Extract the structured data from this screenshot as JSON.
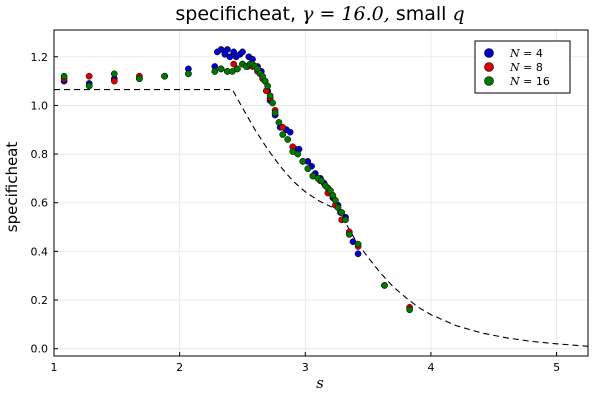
{
  "chart_data": {
    "type": "scatter",
    "title": {
      "prefix": "specificheat, ",
      "gamma_symbol": "γ",
      "gamma_value": " = 16.0,  ",
      "suffix": "small ",
      "q": "q"
    },
    "xlabel": "s",
    "ylabel": "specificheat",
    "xlim": [
      1.0,
      5.25
    ],
    "ylim": [
      -0.03,
      1.31
    ],
    "xticks": [
      1,
      2,
      3,
      4,
      5
    ],
    "yticks": [
      0.0,
      0.2,
      0.4,
      0.6,
      0.8,
      1.0,
      1.2
    ],
    "grid": true,
    "legend": {
      "position": "top-right"
    },
    "series": [
      {
        "name_prefix": "N",
        "name": " = 4",
        "color": "#0000cc",
        "marker": "circle",
        "points": [
          [
            1.08,
            1.1
          ],
          [
            1.28,
            1.09
          ],
          [
            1.48,
            1.11
          ],
          [
            1.68,
            1.11
          ],
          [
            1.88,
            1.12
          ],
          [
            2.07,
            1.15
          ],
          [
            2.28,
            1.16
          ],
          [
            2.3,
            1.22
          ],
          [
            2.33,
            1.23
          ],
          [
            2.36,
            1.21
          ],
          [
            2.38,
            1.23
          ],
          [
            2.4,
            1.2
          ],
          [
            2.43,
            1.22
          ],
          [
            2.45,
            1.2
          ],
          [
            2.48,
            1.21
          ],
          [
            2.5,
            1.22
          ],
          [
            2.55,
            1.2
          ],
          [
            2.58,
            1.19
          ],
          [
            2.62,
            1.16
          ],
          [
            2.65,
            1.14
          ],
          [
            2.68,
            1.1
          ],
          [
            2.7,
            1.06
          ],
          [
            2.72,
            1.02
          ],
          [
            2.76,
            0.96
          ],
          [
            2.8,
            0.91
          ],
          [
            2.85,
            0.9
          ],
          [
            2.88,
            0.89
          ],
          [
            2.92,
            0.82
          ],
          [
            2.95,
            0.82
          ],
          [
            3.02,
            0.77
          ],
          [
            3.05,
            0.75
          ],
          [
            3.08,
            0.72
          ],
          [
            3.12,
            0.7
          ],
          [
            3.15,
            0.68
          ],
          [
            3.18,
            0.66
          ],
          [
            3.2,
            0.64
          ],
          [
            3.22,
            0.62
          ],
          [
            3.26,
            0.59
          ],
          [
            3.28,
            0.56
          ],
          [
            3.32,
            0.54
          ],
          [
            3.38,
            0.44
          ],
          [
            3.42,
            0.39
          ]
        ]
      },
      {
        "name_prefix": "N",
        "name": " = 8",
        "color": "#dd0000",
        "marker": "circle",
        "points": [
          [
            1.08,
            1.11
          ],
          [
            1.28,
            1.12
          ],
          [
            1.48,
            1.1
          ],
          [
            1.68,
            1.12
          ],
          [
            1.88,
            1.12
          ],
          [
            2.07,
            1.13
          ],
          [
            2.28,
            1.14
          ],
          [
            2.33,
            1.15
          ],
          [
            2.38,
            1.14
          ],
          [
            2.43,
            1.17
          ],
          [
            2.46,
            1.15
          ],
          [
            2.5,
            1.17
          ],
          [
            2.54,
            1.16
          ],
          [
            2.58,
            1.16
          ],
          [
            2.62,
            1.14
          ],
          [
            2.66,
            1.11
          ],
          [
            2.69,
            1.06
          ],
          [
            2.72,
            1.03
          ],
          [
            2.76,
            0.98
          ],
          [
            2.82,
            0.91
          ],
          [
            2.9,
            0.83
          ],
          [
            2.98,
            0.77
          ],
          [
            3.06,
            0.71
          ],
          [
            3.12,
            0.69
          ],
          [
            3.18,
            0.64
          ],
          [
            3.24,
            0.59
          ],
          [
            3.29,
            0.53
          ],
          [
            3.35,
            0.48
          ],
          [
            3.42,
            0.42
          ],
          [
            3.63,
            0.26
          ],
          [
            3.83,
            0.17
          ]
        ]
      },
      {
        "name_prefix": "N",
        "name": " = 16",
        "color": "#007700",
        "marker": "circle",
        "points": [
          [
            1.08,
            1.12
          ],
          [
            1.28,
            1.08
          ],
          [
            1.48,
            1.13
          ],
          [
            1.68,
            1.11
          ],
          [
            1.88,
            1.12
          ],
          [
            2.07,
            1.13
          ],
          [
            2.28,
            1.14
          ],
          [
            2.33,
            1.15
          ],
          [
            2.38,
            1.14
          ],
          [
            2.42,
            1.14
          ],
          [
            2.46,
            1.15
          ],
          [
            2.5,
            1.17
          ],
          [
            2.53,
            1.16
          ],
          [
            2.56,
            1.17
          ],
          [
            2.58,
            1.17
          ],
          [
            2.6,
            1.16
          ],
          [
            2.62,
            1.15
          ],
          [
            2.64,
            1.13
          ],
          [
            2.66,
            1.12
          ],
          [
            2.68,
            1.1
          ],
          [
            2.7,
            1.08
          ],
          [
            2.72,
            1.04
          ],
          [
            2.74,
            1.01
          ],
          [
            2.76,
            0.97
          ],
          [
            2.79,
            0.93
          ],
          [
            2.82,
            0.88
          ],
          [
            2.86,
            0.86
          ],
          [
            2.9,
            0.81
          ],
          [
            2.94,
            0.8
          ],
          [
            2.98,
            0.77
          ],
          [
            3.02,
            0.74
          ],
          [
            3.06,
            0.71
          ],
          [
            3.1,
            0.7
          ],
          [
            3.13,
            0.69
          ],
          [
            3.16,
            0.67
          ],
          [
            3.18,
            0.66
          ],
          [
            3.2,
            0.65
          ],
          [
            3.22,
            0.63
          ],
          [
            3.24,
            0.61
          ],
          [
            3.26,
            0.58
          ],
          [
            3.29,
            0.56
          ],
          [
            3.32,
            0.53
          ],
          [
            3.35,
            0.47
          ],
          [
            3.42,
            0.43
          ],
          [
            3.63,
            0.26
          ],
          [
            3.83,
            0.16
          ]
        ]
      }
    ],
    "reference_curve": {
      "style": "dashed",
      "color": "#000000",
      "points": [
        [
          1.0,
          1.065
        ],
        [
          2.42,
          1.065
        ],
        [
          2.5,
          0.99
        ],
        [
          2.6,
          0.9
        ],
        [
          2.7,
          0.82
        ],
        [
          2.8,
          0.75
        ],
        [
          2.9,
          0.69
        ],
        [
          3.0,
          0.645
        ],
        [
          3.1,
          0.61
        ],
        [
          3.2,
          0.585
        ],
        [
          3.25,
          0.575
        ],
        [
          3.3,
          0.535
        ],
        [
          3.4,
          0.445
        ],
        [
          3.5,
          0.375
        ],
        [
          3.6,
          0.31
        ],
        [
          3.7,
          0.255
        ],
        [
          3.8,
          0.21
        ],
        [
          3.9,
          0.17
        ],
        [
          4.0,
          0.14
        ],
        [
          4.2,
          0.095
        ],
        [
          4.4,
          0.065
        ],
        [
          4.6,
          0.045
        ],
        [
          4.8,
          0.03
        ],
        [
          5.0,
          0.02
        ],
        [
          5.25,
          0.01
        ]
      ]
    }
  }
}
